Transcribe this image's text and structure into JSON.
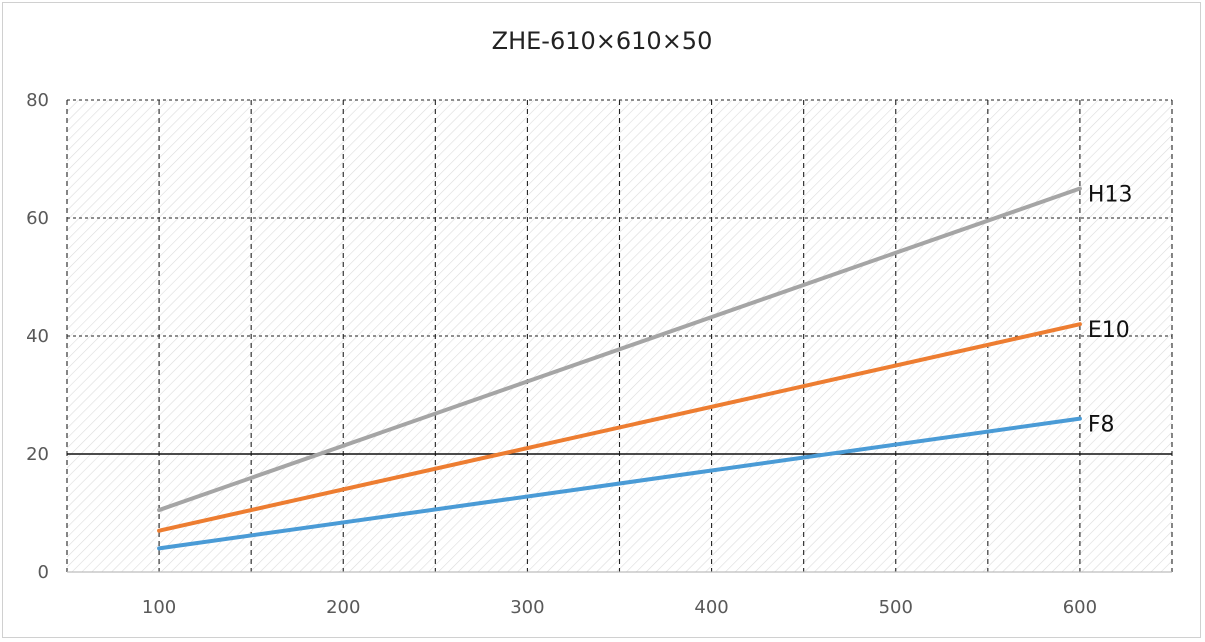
{
  "chart_data": {
    "type": "line",
    "title": "ZHE-610×610×50",
    "xlabel": "",
    "ylabel": "",
    "xlim": [
      50,
      650
    ],
    "ylim": [
      0,
      80
    ],
    "x_ticks": [
      100,
      200,
      300,
      400,
      500,
      600
    ],
    "y_ticks": [
      0,
      20,
      40,
      60,
      80
    ],
    "grid": true,
    "grid_style": "dashed",
    "reference_line_y": 20,
    "legend": "end-of-line labels",
    "series": [
      {
        "name": "H13",
        "color": "#a5a5a5",
        "x": [
          100,
          600
        ],
        "y": [
          10.5,
          65
        ]
      },
      {
        "name": "E10",
        "color": "#ed7d31",
        "x": [
          100,
          600
        ],
        "y": [
          7,
          42
        ]
      },
      {
        "name": "F8",
        "color": "#4a9bd6",
        "x": [
          100,
          600
        ],
        "y": [
          4,
          26
        ]
      }
    ]
  }
}
